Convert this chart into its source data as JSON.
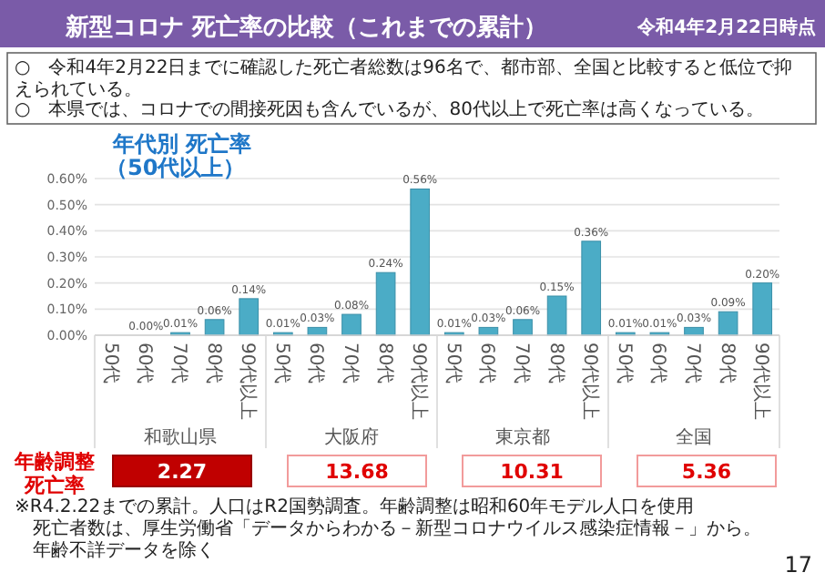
{
  "chart_data": {
    "type": "bar",
    "title": "新型コロナ 死亡率の比較（これまでの累計）",
    "subtitle": "令和4年2月22日時点",
    "categories": [
      "50代",
      "60代",
      "70代",
      "80代",
      "90代以上",
      "50代",
      "60代",
      "70代",
      "80代",
      "90代以上",
      "50代",
      "60代",
      "70代",
      "80代",
      "90代以上",
      "50代",
      "60代",
      "70代",
      "80代",
      "90代以上"
    ],
    "values": [
      null,
      0.0,
      0.01,
      0.06,
      0.14,
      0.01,
      0.03,
      0.08,
      0.24,
      0.56,
      0.01,
      0.03,
      0.06,
      0.15,
      0.36,
      0.01,
      0.01,
      0.03,
      0.09,
      0.2
    ],
    "value_labels": [
      null,
      "0.00%",
      "0.01%",
      "0.06%",
      "0.14%",
      "0.01%",
      "0.03%",
      "0.08%",
      "0.24%",
      "0.56%",
      "0.01%",
      "0.03%",
      "0.06%",
      "0.15%",
      "0.36%",
      "0.01%",
      "0.01%",
      "0.03%",
      "0.09%",
      "0.20%"
    ],
    "color": "#4bacc6",
    "ylim": [
      0,
      0.6
    ],
    "yticks": [
      {
        "value": 0,
        "label": "0.00%"
      },
      {
        "value": 0.1,
        "label": "0.10%"
      },
      {
        "value": 0.2,
        "label": "0.20%"
      },
      {
        "value": 0.3,
        "label": "0.30%"
      },
      {
        "value": 0.4,
        "label": "0.40%"
      },
      {
        "value": 0.5,
        "label": "0.50%"
      },
      {
        "value": 0.6,
        "label": "0.60%"
      }
    ],
    "grid": "y",
    "annotations": [
      "○　令和4年2月22日までに確認した死亡者総数は96名で、都市部、全国と比較すると低位で抑えられている。",
      "○　本県では、コロナでの間接死因も含んでいるが、80代以上で死亡率は高くなっている。",
      "年代別 死亡率",
      "（50代以上）",
      "和歌山県",
      "大阪府",
      "東京都",
      "全国",
      "年齢調整",
      "死亡率",
      "2.27",
      "13.68",
      "10.31",
      "5.36",
      "※R4.2.22までの累計。人口はR2国勢調査。年齢調整は昭和60年モデル人口を使用",
      "死亡者数は、厚生労働省「データからわかる－新型コロナウイルス感染症情報－」から。年齢不詳データを除く",
      "17"
    ]
  }
}
